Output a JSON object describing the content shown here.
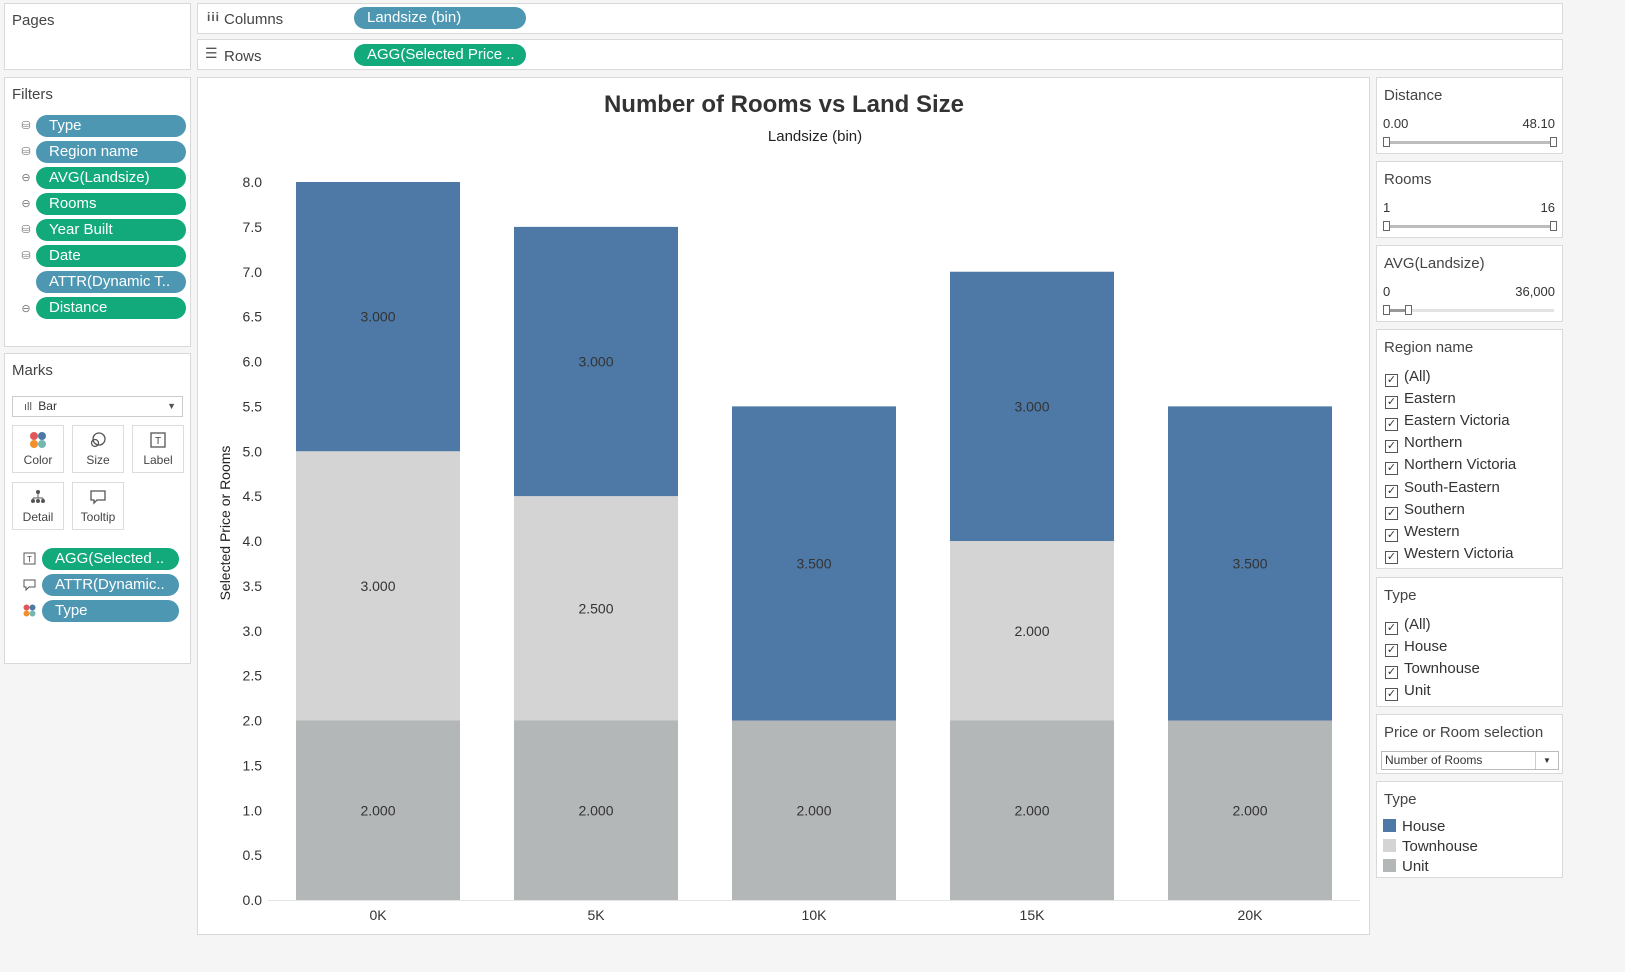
{
  "pages": {
    "title": "Pages"
  },
  "shelves": {
    "columns_label": "Columns",
    "columns_pill": "Landsize (bin)",
    "rows_label": "Rows",
    "rows_pill": "AGG(Selected Price .."
  },
  "filters": {
    "title": "Filters",
    "items": [
      {
        "label": "Type",
        "color": "blue"
      },
      {
        "label": "Region name",
        "color": "blue"
      },
      {
        "label": "AVG(Landsize)",
        "color": "green"
      },
      {
        "label": "Rooms",
        "color": "green"
      },
      {
        "label": "Year Built",
        "color": "green"
      },
      {
        "label": "Date",
        "color": "green"
      },
      {
        "label": "ATTR(Dynamic T..",
        "color": "blue"
      },
      {
        "label": "Distance",
        "color": "green"
      }
    ]
  },
  "marks": {
    "title": "Marks",
    "mark_type": "Bar",
    "buttons": {
      "color": "Color",
      "size": "Size",
      "label": "Label",
      "detail": "Detail",
      "tooltip": "Tooltip"
    },
    "fields": [
      {
        "label": "AGG(Selected ..",
        "color": "green",
        "icon": "label-icon"
      },
      {
        "label": "ATTR(Dynamic..",
        "color": "blue",
        "icon": "tooltip-icon"
      },
      {
        "label": "Type",
        "color": "blue",
        "icon": "color-icon"
      }
    ]
  },
  "chart_data": {
    "type": "bar",
    "stacked": true,
    "title": "Number of Rooms vs Land Size",
    "subtitle": "Landsize (bin)",
    "ylabel": "Selected Price or Rooms",
    "xlabel": "",
    "categories": [
      "0K",
      "5K",
      "10K",
      "15K",
      "20K"
    ],
    "ylim": [
      0,
      8
    ],
    "yticks": [
      "0.0",
      "0.5",
      "1.0",
      "1.5",
      "2.0",
      "2.5",
      "3.0",
      "3.5",
      "4.0",
      "4.5",
      "5.0",
      "5.5",
      "6.0",
      "6.5",
      "7.0",
      "7.5",
      "8.0"
    ],
    "series": [
      {
        "name": "Unit",
        "color": "#b4b7b8",
        "values": [
          2,
          2,
          2,
          2,
          2
        ],
        "labels": [
          "2.000",
          "2.000",
          "2.000",
          "2.000",
          "2.000"
        ]
      },
      {
        "name": "Townhouse",
        "color": "#d4d4d4",
        "values": [
          3,
          2.5,
          0,
          2,
          0
        ],
        "labels": [
          "3.000",
          "2.500",
          "",
          "2.000",
          ""
        ]
      },
      {
        "name": "House",
        "color": "#4e79a7",
        "values": [
          3,
          3,
          3.5,
          3,
          3.5
        ],
        "labels": [
          "3.000",
          "3.000",
          "3.500",
          "3.000",
          "3.500"
        ]
      }
    ],
    "grid": false
  },
  "right_panel": {
    "distance": {
      "title": "Distance",
      "min": "0.00",
      "max": "48.10"
    },
    "rooms": {
      "title": "Rooms",
      "min": "1",
      "max": "16"
    },
    "avg_landsize": {
      "title": "AVG(Landsize)",
      "min": "0",
      "max": "36,000"
    },
    "region": {
      "title": "Region name",
      "items": [
        "(All)",
        "Eastern",
        "Eastern Victoria",
        "Northern",
        "Northern Victoria",
        "South-Eastern",
        "Southern",
        "Western",
        "Western Victoria"
      ]
    },
    "type_filter": {
      "title": "Type",
      "items": [
        "(All)",
        "House",
        "Townhouse",
        "Unit"
      ]
    },
    "price_room": {
      "title": "Price or Room selection",
      "value": "Number of Rooms"
    },
    "type_legend": {
      "title": "Type",
      "items": [
        {
          "label": "House",
          "color": "#4e79a7"
        },
        {
          "label": "Townhouse",
          "color": "#d4d4d4"
        },
        {
          "label": "Unit",
          "color": "#b4b7b8"
        }
      ]
    }
  }
}
